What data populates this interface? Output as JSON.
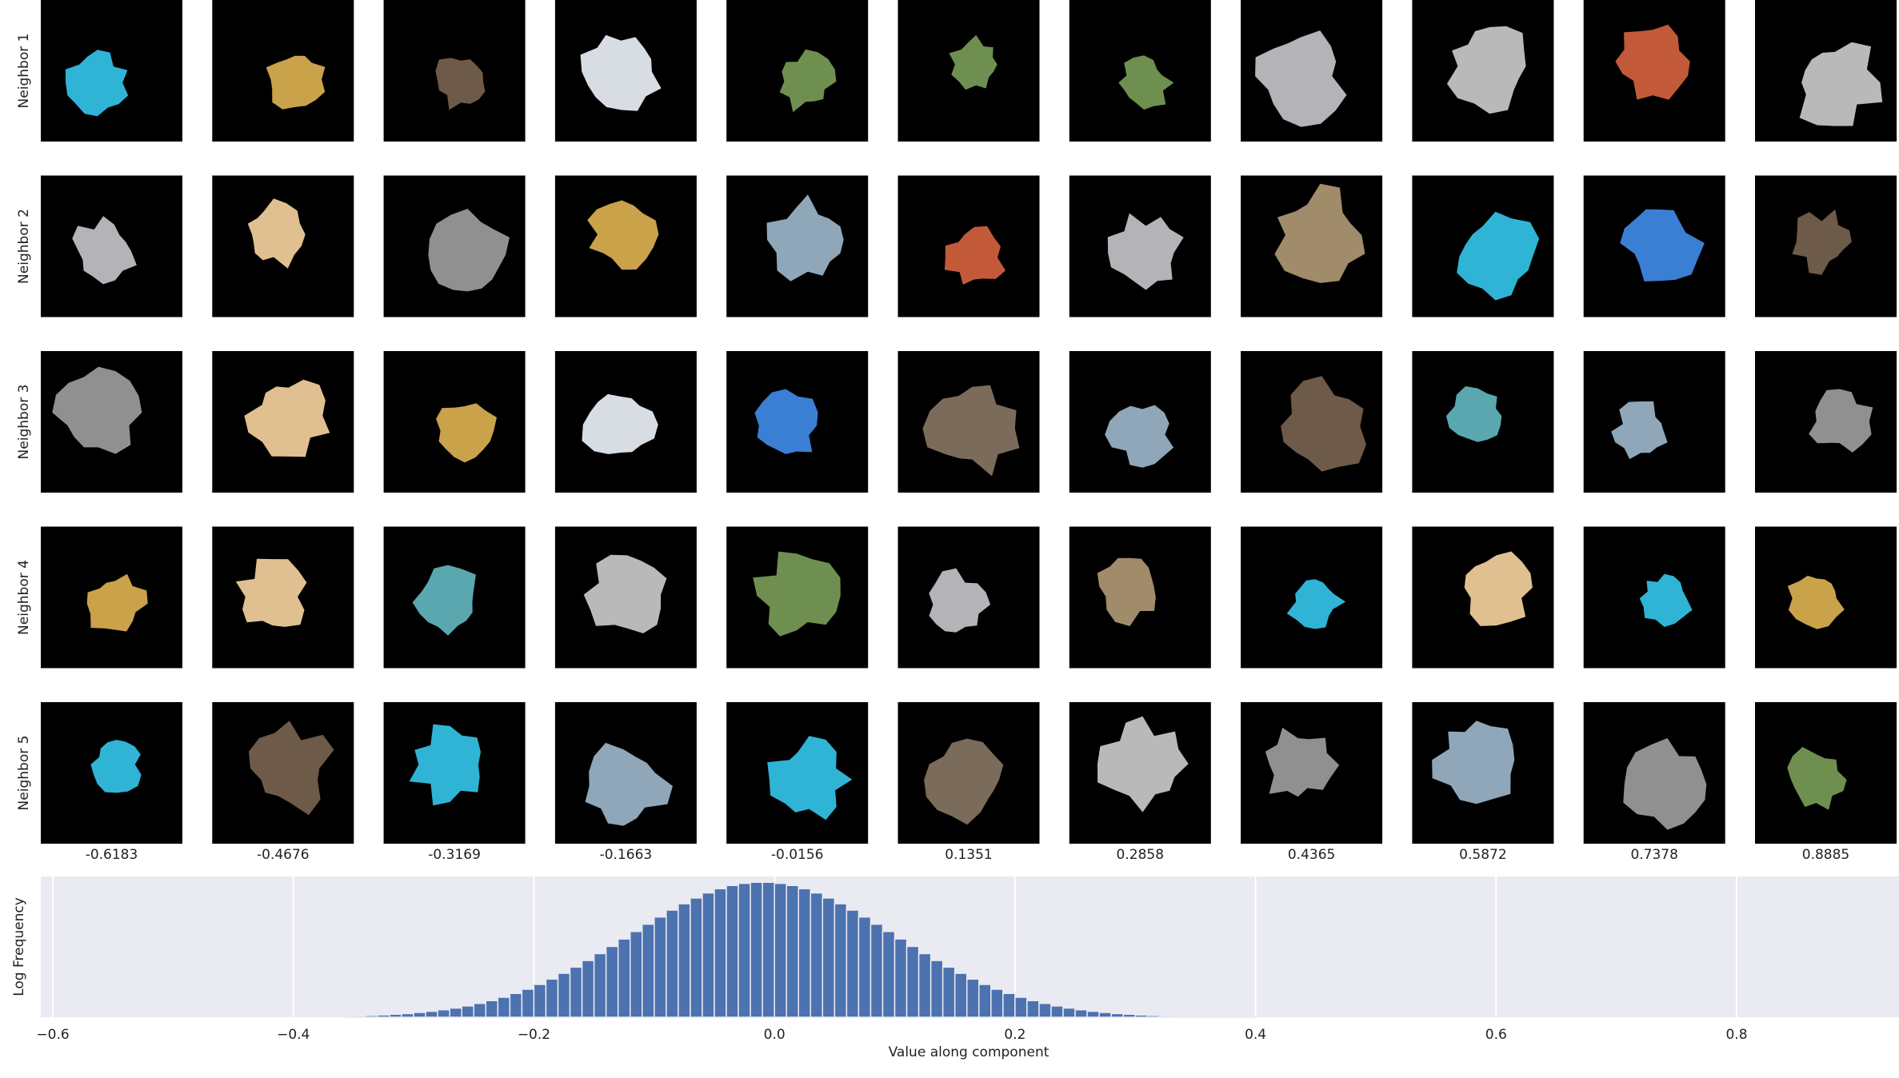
{
  "chart_data": {
    "type": "histogram",
    "row_labels": [
      "Neighbor 1",
      "Neighbor 2",
      "Neighbor 3",
      "Neighbor 4",
      "Neighbor 5"
    ],
    "column_values": [
      -0.6183,
      -0.4676,
      -0.3169,
      -0.1663,
      -0.0156,
      0.1351,
      0.2858,
      0.4365,
      0.5872,
      0.7378,
      0.8885
    ],
    "bins": [
      -0.36,
      -0.35,
      -0.34,
      -0.33,
      -0.32,
      -0.31,
      -0.3,
      -0.29,
      -0.28,
      -0.27,
      -0.26,
      -0.25,
      -0.24,
      -0.23,
      -0.22,
      -0.21,
      -0.2,
      -0.19,
      -0.18,
      -0.17,
      -0.16,
      -0.15,
      -0.14,
      -0.13,
      -0.12,
      -0.11,
      -0.1,
      -0.09,
      -0.08,
      -0.07,
      -0.06,
      -0.05,
      -0.04,
      -0.03,
      -0.02,
      -0.01,
      0,
      0.01,
      0.02,
      0.03,
      0.04,
      0.05,
      0.06,
      0.07,
      0.08,
      0.09,
      0.1,
      0.11,
      0.12,
      0.13,
      0.14,
      0.15,
      0.16,
      0.17,
      0.18,
      0.19,
      0.2,
      0.21,
      0.22,
      0.23,
      0.24,
      0.25,
      0.26,
      0.27,
      0.28,
      0.29,
      0.3,
      0.31,
      0.32,
      0.33,
      0.34,
      0.35,
      0.36,
      0.37,
      0.38,
      0.39,
      0.4
    ],
    "values": [
      0.007,
      0.009,
      0.012,
      0.016,
      0.021,
      0.026,
      0.034,
      0.042,
      0.053,
      0.065,
      0.08,
      0.098,
      0.118,
      0.142,
      0.169,
      0.199,
      0.233,
      0.271,
      0.312,
      0.356,
      0.403,
      0.452,
      0.503,
      0.556,
      0.609,
      0.661,
      0.712,
      0.761,
      0.806,
      0.847,
      0.883,
      0.913,
      0.936,
      0.951,
      0.959,
      0.959,
      0.951,
      0.936,
      0.913,
      0.883,
      0.847,
      0.806,
      0.761,
      0.712,
      0.661,
      0.609,
      0.556,
      0.503,
      0.452,
      0.403,
      0.356,
      0.312,
      0.271,
      0.233,
      0.199,
      0.169,
      0.142,
      0.118,
      0.098,
      0.08,
      0.065,
      0.053,
      0.042,
      0.034,
      0.026,
      0.021,
      0.016,
      0.012,
      0.009,
      0.007,
      0.005,
      0.004,
      0.003,
      0.002,
      0.002,
      0.001
    ],
    "color": "#4c72b0",
    "xlabel": "Value along component",
    "ylabel": "Log Frequency",
    "xlim": [
      -0.61,
      0.935
    ],
    "ylim": [
      0,
      1
    ],
    "xticks": [
      {
        "value": -0.6,
        "label": "−0.6"
      },
      {
        "value": -0.4,
        "label": "−0.4"
      },
      {
        "value": -0.2,
        "label": "−0.2"
      },
      {
        "value": 0,
        "label": "0.0"
      },
      0.2,
      0.4,
      0.6,
      0.8
    ],
    "grid": true
  }
}
